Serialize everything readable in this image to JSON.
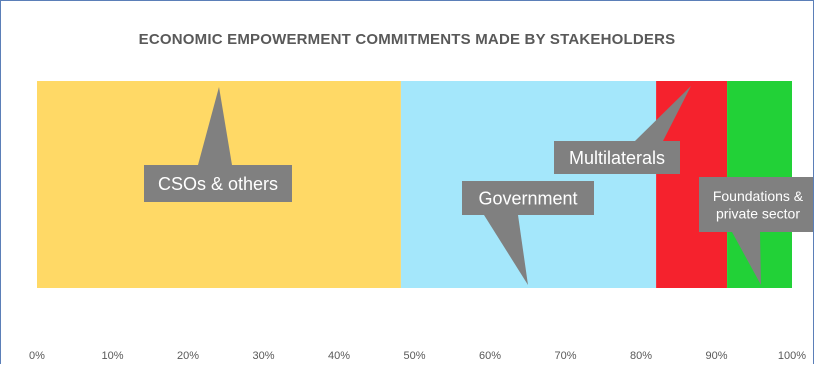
{
  "chart_data": {
    "type": "bar",
    "orientation": "horizontal",
    "stacked": true,
    "title": "ECONOMIC EMPOWERMENT COMMITMENTS MADE BY STAKEHOLDERS",
    "xlabel": "",
    "ylabel": "",
    "xlim": [
      0,
      100
    ],
    "x_ticks": [
      "0%",
      "10%",
      "20%",
      "30%",
      "40%",
      "50%",
      "60%",
      "70%",
      "80%",
      "90%",
      "100%"
    ],
    "grid": false,
    "legend": "none",
    "series": [
      {
        "name": "CSOs & others",
        "value": 48.2,
        "color": "#ffd966"
      },
      {
        "name": "Government",
        "value": 33.8,
        "color": "#a4e7fb"
      },
      {
        "name": "Multilaterals",
        "value": 9.4,
        "color": "#f5222d"
      },
      {
        "name": "Foundations & private sector",
        "value": 8.6,
        "color": "#22d137"
      }
    ],
    "callouts": [
      {
        "series": 0,
        "lines": [
          "CSOs & others"
        ]
      },
      {
        "series": 1,
        "lines": [
          "Government"
        ]
      },
      {
        "series": 2,
        "lines": [
          "Multilaterals"
        ]
      },
      {
        "series": 3,
        "lines": [
          "Foundations &",
          "private sector"
        ]
      }
    ],
    "callout_color": "#808080"
  }
}
